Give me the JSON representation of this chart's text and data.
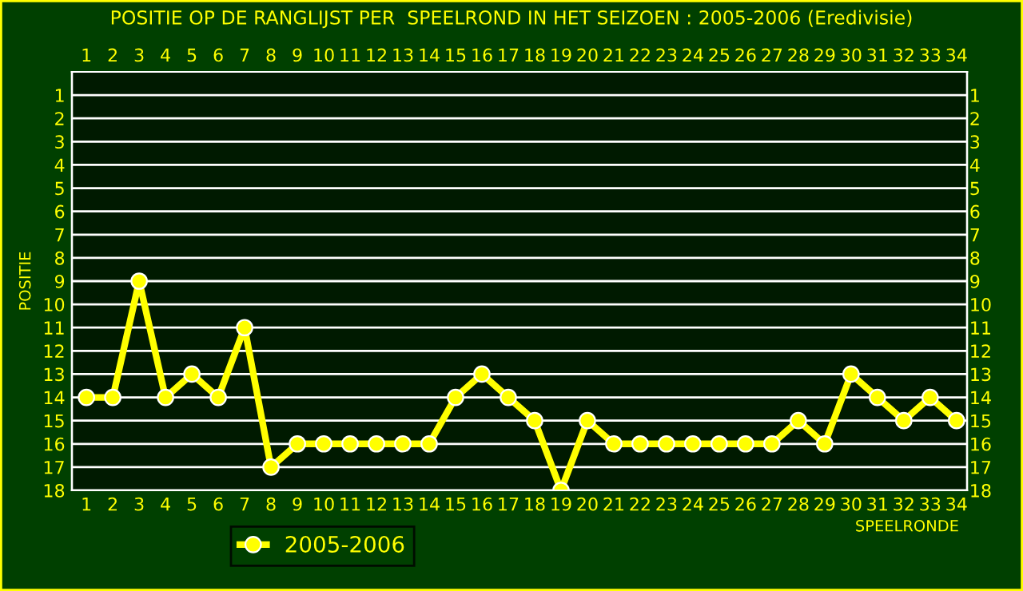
{
  "chart_data": {
    "type": "line",
    "title": "POSITIE OP DE RANGLIJST PER  SPEELROND IN HET SEIZOEN : 2005-2006 (Eredivisie)",
    "xlabel": "SPEELRONDE",
    "ylabel": "POSITIE",
    "x": [
      1,
      2,
      3,
      4,
      5,
      6,
      7,
      8,
      9,
      10,
      11,
      12,
      13,
      14,
      15,
      16,
      17,
      18,
      19,
      20,
      21,
      22,
      23,
      24,
      25,
      26,
      27,
      28,
      29,
      30,
      31,
      32,
      33,
      34
    ],
    "series": [
      {
        "name": "2005-2006",
        "color": "#ffff00",
        "values": [
          14,
          14,
          9,
          14,
          13,
          14,
          11,
          17,
          16,
          16,
          16,
          16,
          16,
          16,
          14,
          13,
          14,
          15,
          18,
          15,
          16,
          16,
          16,
          16,
          16,
          16,
          16,
          15,
          16,
          13,
          14,
          15,
          14,
          15
        ]
      }
    ],
    "xlim": [
      0.45,
      34.4
    ],
    "xticks": [
      1,
      2,
      3,
      4,
      5,
      6,
      7,
      8,
      9,
      10,
      11,
      12,
      13,
      14,
      15,
      16,
      17,
      18,
      19,
      20,
      21,
      22,
      23,
      24,
      25,
      26,
      27,
      28,
      29,
      30,
      31,
      32,
      33,
      34
    ],
    "x2lim": [
      0.45,
      34.4
    ],
    "x2ticks": [
      1,
      2,
      3,
      4,
      5,
      6,
      7,
      8,
      9,
      10,
      11,
      12,
      13,
      14,
      15,
      16,
      17,
      18,
      19,
      20,
      21,
      22,
      23,
      24,
      25,
      26,
      27,
      28,
      29,
      30,
      31,
      32,
      33,
      34
    ],
    "ylim": [
      18,
      0
    ],
    "yticks": [
      1,
      2,
      3,
      4,
      5,
      6,
      7,
      8,
      9,
      10,
      11,
      12,
      13,
      14,
      15,
      16,
      17,
      18
    ],
    "y2lim": [
      18,
      0
    ],
    "y2ticks": [
      1,
      2,
      3,
      4,
      5,
      6,
      7,
      8,
      9,
      10,
      11,
      12,
      13,
      14,
      15,
      16,
      17,
      18
    ],
    "grid": "y",
    "legend": "bottom",
    "marker": "circle",
    "line_style": "solid"
  }
}
